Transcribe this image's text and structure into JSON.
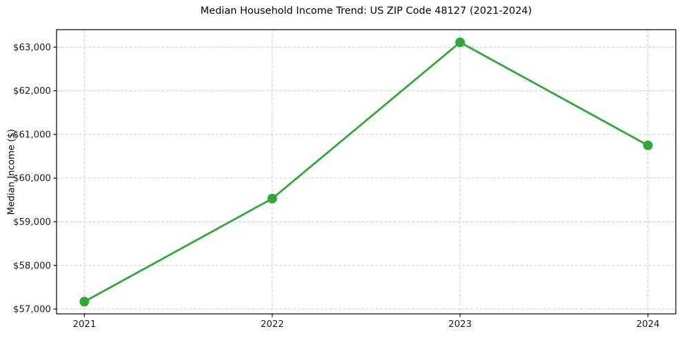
{
  "figure": {
    "background": "#ffffff"
  },
  "chart_data": {
    "type": "line",
    "title": "Median Household Income Trend: US ZIP Code 48127 (2021-2024)",
    "xlabel": "",
    "ylabel": "Median Income ($)",
    "categories": [
      "2021",
      "2022",
      "2023",
      "2024"
    ],
    "series": [
      {
        "values": [
          57170,
          59530,
          63110,
          60750
        ],
        "color": "#2fa838",
        "marker": "circle",
        "line_width": 2.8,
        "marker_radius": 7
      }
    ],
    "y_ticks": [
      {
        "value": 57000,
        "label": "$57,000"
      },
      {
        "value": 58000,
        "label": "$58,000"
      },
      {
        "value": 59000,
        "label": "$59,000"
      },
      {
        "value": 60000,
        "label": "$60,000"
      },
      {
        "value": 61000,
        "label": "$61,000"
      },
      {
        "value": 62000,
        "label": "$62,000"
      },
      {
        "value": 63000,
        "label": "$63,000"
      }
    ],
    "ylim": [
      56890,
      63400
    ],
    "grid": true,
    "grid_style": "dashed",
    "legend": "none",
    "colors": {
      "line": "#2fa838",
      "grid": "#cdcdcd",
      "spine": "#000000",
      "tick_text": "#1a1a1a",
      "background": "#ffffff"
    }
  }
}
